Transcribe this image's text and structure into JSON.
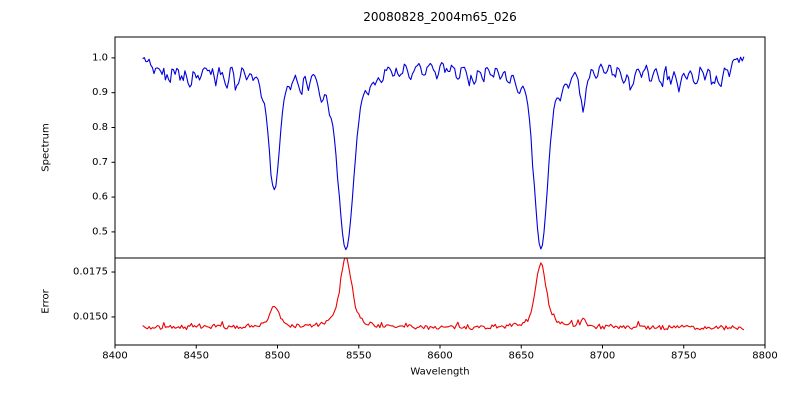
{
  "figure": {
    "background": "#ffffff",
    "axis_color": "#000000"
  },
  "chart_data": {
    "type": "line",
    "title": "20080828_2004m65_026",
    "xlabel": "Wavelength",
    "xlim": [
      8400,
      8800
    ],
    "x_ticks": [
      8400,
      8450,
      8500,
      8550,
      8600,
      8650,
      8700,
      8750,
      8800
    ],
    "x_range": [
      8417,
      8787
    ],
    "sample_step": 1,
    "legend": "none",
    "grid": false,
    "panels": [
      {
        "name": "spectrum",
        "ylabel": "Spectrum",
        "ylim": [
          0.425,
          1.06
        ],
        "y_ticks": [
          0.5,
          0.6,
          0.7,
          0.8,
          0.9,
          1.0
        ],
        "tick_decimals": 1,
        "line_color": "#0000dd",
        "baseline": 1.0,
        "noise": {
          "amplitude": 0.008,
          "dip_probability": 0.18,
          "dip_depth": 0.03,
          "seed": 42
        },
        "absorption_lines": [
          {
            "center": 8498.0,
            "depth": 0.37,
            "width": 3.2
          },
          {
            "center": 8542.1,
            "depth": 0.545,
            "width": 4.5
          },
          {
            "center": 8662.1,
            "depth": 0.545,
            "width": 4.0
          },
          {
            "center": 8424,
            "depth": 0.035,
            "width": 1.2
          },
          {
            "center": 8429,
            "depth": 0.03,
            "width": 1.0
          },
          {
            "center": 8433,
            "depth": 0.05,
            "width": 1.2
          },
          {
            "center": 8437,
            "depth": 0.03,
            "width": 1.0
          },
          {
            "center": 8441,
            "depth": 0.04,
            "width": 1.1
          },
          {
            "center": 8446,
            "depth": 0.075,
            "width": 1.4
          },
          {
            "center": 8452,
            "depth": 0.05,
            "width": 1.2
          },
          {
            "center": 8457,
            "depth": 0.03,
            "width": 1.0
          },
          {
            "center": 8462,
            "depth": 0.045,
            "width": 1.1
          },
          {
            "center": 8468,
            "depth": 0.06,
            "width": 1.3
          },
          {
            "center": 8475,
            "depth": 0.065,
            "width": 1.4
          },
          {
            "center": 8481,
            "depth": 0.035,
            "width": 1.0
          },
          {
            "center": 8485,
            "depth": 0.03,
            "width": 1.0
          },
          {
            "center": 8490,
            "depth": 0.04,
            "width": 1.0
          },
          {
            "center": 8508,
            "depth": 0.04,
            "width": 1.1
          },
          {
            "center": 8514,
            "depth": 0.055,
            "width": 1.3
          },
          {
            "center": 8519,
            "depth": 0.04,
            "width": 1.1
          },
          {
            "center": 8527,
            "depth": 0.065,
            "width": 1.5
          },
          {
            "center": 8532,
            "depth": 0.04,
            "width": 1.0
          },
          {
            "center": 8556,
            "depth": 0.045,
            "width": 1.2
          },
          {
            "center": 8560,
            "depth": 0.03,
            "width": 1.0
          },
          {
            "center": 8564,
            "depth": 0.04,
            "width": 1.1
          },
          {
            "center": 8571,
            "depth": 0.03,
            "width": 1.0
          },
          {
            "center": 8575,
            "depth": 0.035,
            "width": 1.0
          },
          {
            "center": 8582,
            "depth": 0.05,
            "width": 1.2
          },
          {
            "center": 8590,
            "depth": 0.04,
            "width": 1.1
          },
          {
            "center": 8598,
            "depth": 0.045,
            "width": 1.2
          },
          {
            "center": 8605,
            "depth": 0.03,
            "width": 1.0
          },
          {
            "center": 8611,
            "depth": 0.05,
            "width": 1.2
          },
          {
            "center": 8617,
            "depth": 0.035,
            "width": 1.0
          },
          {
            "center": 8621,
            "depth": 0.06,
            "width": 1.3
          },
          {
            "center": 8626,
            "depth": 0.04,
            "width": 1.0
          },
          {
            "center": 8632,
            "depth": 0.035,
            "width": 1.0
          },
          {
            "center": 8637,
            "depth": 0.03,
            "width": 1.0
          },
          {
            "center": 8642,
            "depth": 0.045,
            "width": 1.1
          },
          {
            "center": 8648,
            "depth": 0.055,
            "width": 1.2
          },
          {
            "center": 8674,
            "depth": 0.055,
            "width": 1.3
          },
          {
            "center": 8679,
            "depth": 0.045,
            "width": 1.1
          },
          {
            "center": 8688,
            "depth": 0.12,
            "width": 1.8
          },
          {
            "center": 8696,
            "depth": 0.04,
            "width": 1.1
          },
          {
            "center": 8702,
            "depth": 0.035,
            "width": 1.0
          },
          {
            "center": 8707,
            "depth": 0.04,
            "width": 1.1
          },
          {
            "center": 8713,
            "depth": 0.055,
            "width": 1.3
          },
          {
            "center": 8718,
            "depth": 0.075,
            "width": 1.5
          },
          {
            "center": 8724,
            "depth": 0.04,
            "width": 1.1
          },
          {
            "center": 8730,
            "depth": 0.05,
            "width": 1.2
          },
          {
            "center": 8736,
            "depth": 0.065,
            "width": 1.4
          },
          {
            "center": 8742,
            "depth": 0.05,
            "width": 1.2
          },
          {
            "center": 8747,
            "depth": 0.08,
            "width": 1.5
          },
          {
            "center": 8752,
            "depth": 0.045,
            "width": 1.1
          },
          {
            "center": 8757,
            "depth": 0.07,
            "width": 1.4
          },
          {
            "center": 8763,
            "depth": 0.05,
            "width": 1.2
          },
          {
            "center": 8768,
            "depth": 0.045,
            "width": 1.1
          },
          {
            "center": 8772,
            "depth": 0.075,
            "width": 1.5
          },
          {
            "center": 8778,
            "depth": 0.04,
            "width": 1.1
          }
        ]
      },
      {
        "name": "error",
        "ylabel": "Error",
        "ylim": [
          0.01344,
          0.01828
        ],
        "y_ticks": [
          0.015,
          0.0175
        ],
        "tick_decimals": 4,
        "line_color": "#ee0000",
        "baseline": 0.0144,
        "noise": {
          "amplitude": 0.00012,
          "spike_probability": 0.15,
          "spike_height": 0.0004,
          "seed": 7
        },
        "emission_peaks": [
          {
            "center": 8498.0,
            "height": 0.0012,
            "width": 2.6
          },
          {
            "center": 8542.1,
            "height": 0.0039,
            "width": 3.2
          },
          {
            "center": 8662.1,
            "height": 0.0035,
            "width": 3.0
          },
          {
            "center": 8688,
            "height": 0.0004,
            "width": 1.5
          }
        ]
      }
    ]
  }
}
